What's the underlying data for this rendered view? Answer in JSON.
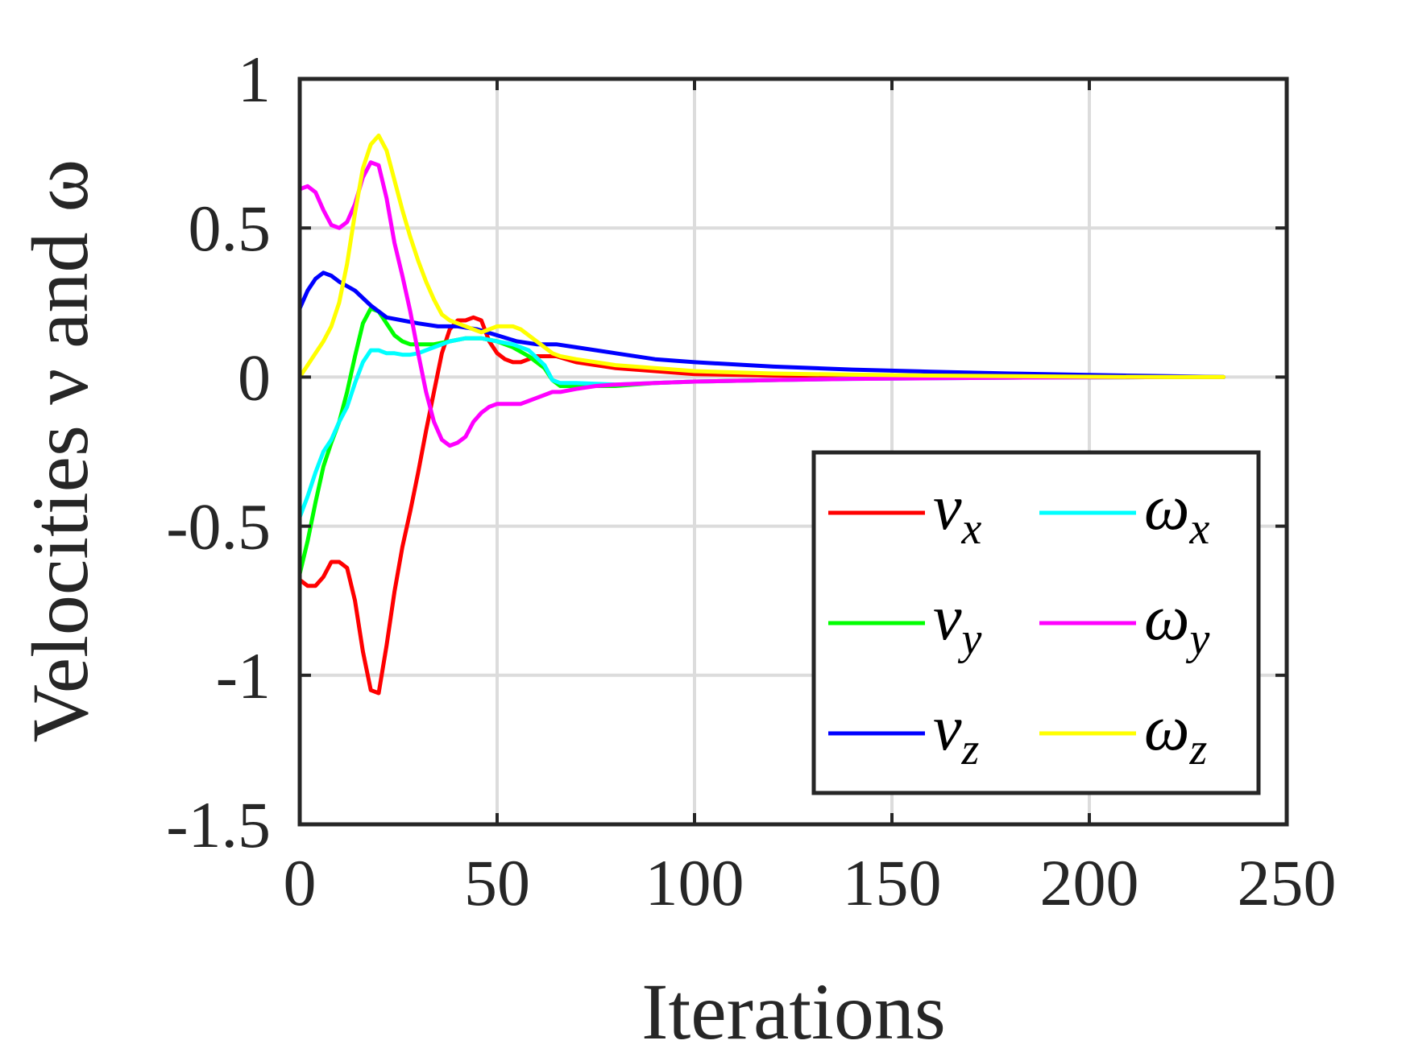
{
  "chart_data": {
    "type": "line",
    "xlabel": "Iterations",
    "ylabel": "Velocities ν and ω",
    "xlim": [
      0,
      250
    ],
    "ylim": [
      -1.5,
      1
    ],
    "xticks": [
      0,
      50,
      100,
      150,
      200,
      250
    ],
    "xtick_labels": [
      "0",
      "50",
      "100",
      "150",
      "200",
      "250"
    ],
    "yticks": [
      1,
      0.5,
      0,
      -0.5,
      -1,
      -1.5
    ],
    "ytick_labels": [
      "1",
      "0.5",
      "0",
      "-0.5",
      "-1",
      "-1.5"
    ],
    "grid": true,
    "legend": {
      "placement": "bottom-right",
      "columns": 2
    },
    "series": [
      {
        "name": "ν_x",
        "symbol": "ν",
        "sub": "x",
        "color": "#ff0000",
        "x": [
          0,
          2,
          4,
          6,
          8,
          10,
          12,
          14,
          16,
          18,
          20,
          22,
          24,
          26,
          28,
          30,
          32,
          34,
          36,
          38,
          40,
          42,
          44,
          46,
          48,
          50,
          52,
          54,
          56,
          58,
          60,
          62,
          65,
          70,
          80,
          90,
          100,
          120,
          140,
          160,
          180,
          200,
          220,
          234
        ],
        "y": [
          -0.68,
          -0.7,
          -0.7,
          -0.67,
          -0.62,
          -0.62,
          -0.64,
          -0.75,
          -0.92,
          -1.05,
          -1.06,
          -0.9,
          -0.72,
          -0.57,
          -0.45,
          -0.32,
          -0.18,
          -0.05,
          0.08,
          0.16,
          0.19,
          0.19,
          0.2,
          0.19,
          0.12,
          0.08,
          0.06,
          0.05,
          0.05,
          0.06,
          0.07,
          0.07,
          0.07,
          0.05,
          0.03,
          0.02,
          0.01,
          0.005,
          0.003,
          0.002,
          0.001,
          0.0,
          0.0,
          0.0
        ]
      },
      {
        "name": "ν_y",
        "symbol": "ν",
        "sub": "y",
        "color": "#00ff00",
        "x": [
          0,
          2,
          4,
          6,
          8,
          10,
          12,
          14,
          16,
          18,
          20,
          22,
          24,
          26,
          28,
          30,
          34,
          38,
          42,
          46,
          50,
          54,
          58,
          62,
          64,
          66,
          70,
          80,
          90,
          100,
          120,
          140,
          160,
          180,
          200,
          220,
          234
        ],
        "y": [
          -0.66,
          -0.55,
          -0.42,
          -0.3,
          -0.22,
          -0.15,
          -0.05,
          0.07,
          0.18,
          0.23,
          0.22,
          0.18,
          0.14,
          0.12,
          0.11,
          0.11,
          0.11,
          0.12,
          0.13,
          0.13,
          0.12,
          0.1,
          0.07,
          0.03,
          -0.01,
          -0.03,
          -0.03,
          -0.03,
          -0.02,
          -0.015,
          -0.01,
          -0.005,
          -0.003,
          -0.002,
          -0.001,
          0.0,
          0.0
        ]
      },
      {
        "name": "ν_z",
        "symbol": "ν",
        "sub": "z",
        "color": "#0000ff",
        "x": [
          0,
          2,
          4,
          6,
          8,
          10,
          14,
          18,
          22,
          26,
          30,
          35,
          40,
          45,
          50,
          55,
          60,
          65,
          70,
          80,
          90,
          100,
          120,
          140,
          160,
          180,
          200,
          220,
          234
        ],
        "y": [
          0.23,
          0.29,
          0.33,
          0.35,
          0.34,
          0.32,
          0.29,
          0.24,
          0.2,
          0.19,
          0.18,
          0.17,
          0.17,
          0.16,
          0.14,
          0.12,
          0.11,
          0.11,
          0.1,
          0.08,
          0.06,
          0.05,
          0.035,
          0.025,
          0.018,
          0.012,
          0.007,
          0.003,
          0.0
        ]
      },
      {
        "name": "ω_x",
        "symbol": "ω",
        "sub": "x",
        "color": "#00ffff",
        "x": [
          0,
          2,
          4,
          6,
          8,
          10,
          12,
          14,
          16,
          18,
          20,
          22,
          24,
          26,
          28,
          30,
          34,
          38,
          42,
          46,
          50,
          54,
          58,
          62,
          64,
          66,
          70,
          80,
          90,
          100,
          120,
          140,
          160,
          180,
          200,
          220,
          234
        ],
        "y": [
          -0.47,
          -0.4,
          -0.32,
          -0.25,
          -0.21,
          -0.15,
          -0.1,
          -0.02,
          0.05,
          0.09,
          0.09,
          0.08,
          0.08,
          0.075,
          0.075,
          0.08,
          0.1,
          0.12,
          0.13,
          0.13,
          0.12,
          0.11,
          0.09,
          0.04,
          -0.01,
          -0.02,
          -0.02,
          -0.025,
          -0.02,
          -0.015,
          -0.01,
          -0.006,
          -0.004,
          -0.002,
          -0.001,
          0.0,
          0.0
        ]
      },
      {
        "name": "ω_y",
        "symbol": "ω",
        "sub": "y",
        "color": "#ff00ff",
        "x": [
          0,
          2,
          4,
          6,
          8,
          10,
          12,
          14,
          16,
          18,
          20,
          22,
          24,
          26,
          28,
          30,
          32,
          34,
          36,
          38,
          40,
          42,
          44,
          46,
          48,
          50,
          52,
          54,
          56,
          58,
          60,
          62,
          64,
          66,
          70,
          75,
          80,
          90,
          100,
          120,
          140,
          160,
          180,
          200,
          220,
          234
        ],
        "y": [
          0.63,
          0.64,
          0.62,
          0.56,
          0.51,
          0.5,
          0.52,
          0.58,
          0.67,
          0.72,
          0.71,
          0.6,
          0.45,
          0.34,
          0.22,
          0.08,
          -0.05,
          -0.15,
          -0.21,
          -0.23,
          -0.22,
          -0.2,
          -0.15,
          -0.12,
          -0.1,
          -0.09,
          -0.09,
          -0.09,
          -0.09,
          -0.08,
          -0.07,
          -0.06,
          -0.05,
          -0.05,
          -0.04,
          -0.03,
          -0.025,
          -0.02,
          -0.015,
          -0.01,
          -0.006,
          -0.004,
          -0.002,
          -0.001,
          0.0,
          0.0
        ]
      },
      {
        "name": "ω_z",
        "symbol": "ω",
        "sub": "z",
        "color": "#ffff00",
        "x": [
          0,
          2,
          4,
          6,
          8,
          10,
          12,
          14,
          16,
          18,
          20,
          22,
          24,
          26,
          28,
          30,
          32,
          34,
          36,
          38,
          40,
          42,
          44,
          46,
          48,
          50,
          52,
          54,
          56,
          58,
          60,
          62,
          64,
          66,
          70,
          80,
          90,
          100,
          120,
          140,
          160,
          180,
          200,
          220,
          234
        ],
        "y": [
          0.0,
          0.04,
          0.08,
          0.12,
          0.17,
          0.25,
          0.38,
          0.55,
          0.7,
          0.78,
          0.81,
          0.76,
          0.66,
          0.56,
          0.47,
          0.39,
          0.32,
          0.26,
          0.21,
          0.19,
          0.18,
          0.17,
          0.16,
          0.15,
          0.16,
          0.17,
          0.17,
          0.17,
          0.16,
          0.14,
          0.12,
          0.1,
          0.08,
          0.07,
          0.06,
          0.04,
          0.03,
          0.02,
          0.012,
          0.008,
          0.005,
          0.003,
          0.001,
          0.0,
          0.0
        ]
      }
    ]
  }
}
